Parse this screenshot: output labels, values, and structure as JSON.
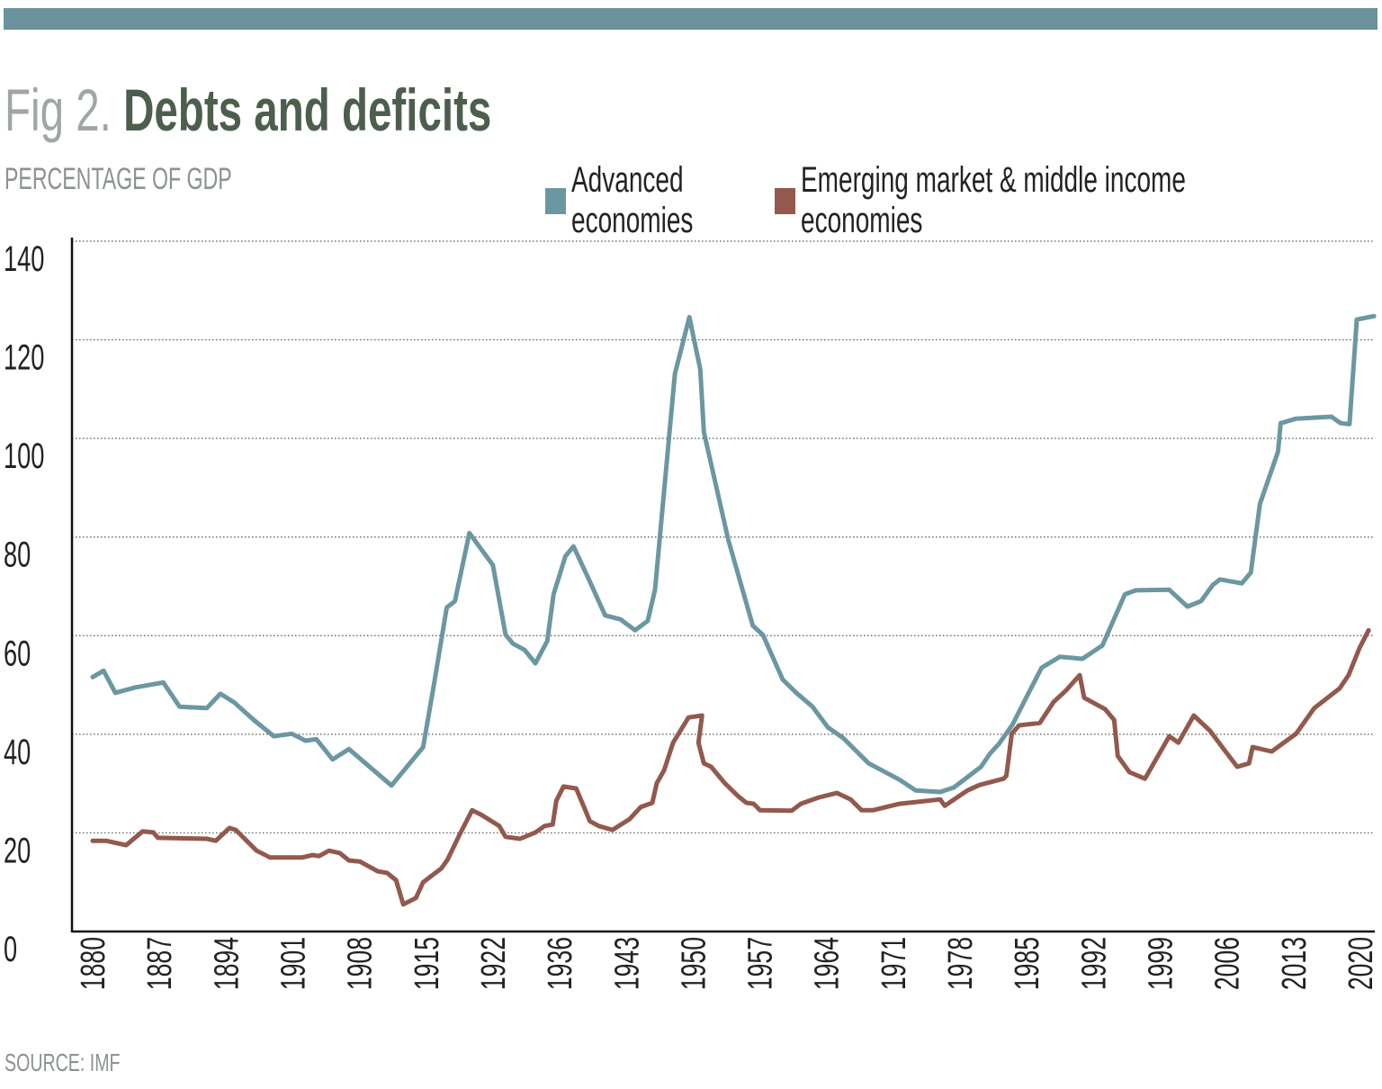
{
  "header": {
    "fig_label": "Fig 2.",
    "title": "Debts and deficits",
    "subtitle": "PERCENTAGE OF GDP",
    "source": "SOURCE: IMF",
    "bar_color": "#6a939c"
  },
  "chart_data": {
    "type": "line",
    "title": "Debts and deficits",
    "ylabel": "PERCENTAGE OF GDP",
    "xlabel": "",
    "ylim": [
      0,
      140
    ],
    "xlim": [
      1880,
      2021
    ],
    "yticks": [
      "0",
      "20",
      "40",
      "60",
      "80",
      "100",
      "120",
      "140"
    ],
    "xticks": [
      "1880",
      "1887",
      "1894",
      "1901",
      "1908",
      "1915",
      "1922",
      "1936",
      "1943",
      "1950",
      "1957",
      "1964",
      "1971",
      "1978",
      "1985",
      "1992",
      "1999",
      "2006",
      "2013",
      "2020"
    ],
    "grid": "horizontal dotted",
    "legend_position": "top-right",
    "series": [
      {
        "name": "Advanced economies",
        "color": "#6b97a2",
        "x": [
          1880,
          1881.2,
          1882.5,
          1884.7,
          1887.8,
          1889.6,
          1892.6,
          1894.1,
          1895.6,
          1897.8,
          1900,
          1902,
          1903.5,
          1904.7,
          1906.5,
          1908.3,
          1913,
          1916.5,
          1917.7,
          1919.1,
          1920,
          1921.6,
          1924.2,
          1925.6,
          1926.4,
          1927.7,
          1928.9,
          1930.2,
          1930.9,
          1932.2,
          1933.1,
          1934.8,
          1936.6,
          1938.3,
          1939.9,
          1941.3,
          1942.1,
          1944.3,
          1945.9,
          1947.1,
          1947.5,
          1950.2,
          1952.9,
          1954,
          1956.2,
          1957.7,
          1959.5,
          1961.2,
          1962.9,
          1965.7,
          1969.1,
          1970.9,
          1973.6,
          1975.1,
          1978.1,
          1979.1,
          1980.1,
          1981.6,
          1983,
          1984.8,
          1986.8,
          1989.3,
          1991.5,
          1994,
          1995.2,
          1998.9,
          2000.9,
          2002.4,
          2003.7,
          2004.5,
          2006.9,
          2007.9,
          2008.9,
          2010.9,
          2011.2,
          2012.9,
          2016.8,
          2017.8,
          2018.8,
          2019.6,
          2021.5
        ],
        "values": [
          51.6,
          52.9,
          48.4,
          49.5,
          50.5,
          45.6,
          45.3,
          48.2,
          46.5,
          42.9,
          39.6,
          40.1,
          38.7,
          39,
          34.9,
          37,
          29.6,
          37.4,
          50.2,
          65.7,
          67,
          80.8,
          74.3,
          60.2,
          58.4,
          57.1,
          54.4,
          58.9,
          68.4,
          76.1,
          78.1,
          71.4,
          64.1,
          63.3,
          61.1,
          63,
          69.3,
          113.1,
          124.6,
          114,
          101.3,
          79.4,
          62,
          60.2,
          51.1,
          48.4,
          45.6,
          41.4,
          39.2,
          34.1,
          30.8,
          28.6,
          28.3,
          29.2,
          33.4,
          36.1,
          38.1,
          42,
          47.1,
          53.5,
          55.7,
          55.3,
          58,
          68.4,
          69.2,
          69.3,
          65.9,
          67,
          70.3,
          71.4,
          70.6,
          72.8,
          86.7,
          97.3,
          103.1,
          104,
          104.4,
          103.1,
          102.9,
          124.1,
          124.8
        ]
      },
      {
        "name": "Emerging market & middle income economies",
        "color": "#92594c",
        "x": [
          1880,
          1881.5,
          1883.7,
          1885.5,
          1886.7,
          1887.2,
          1892.6,
          1893.6,
          1895.1,
          1895.8,
          1898.1,
          1899.6,
          1903.1,
          1904.3,
          1905,
          1906.1,
          1907.3,
          1908.3,
          1909.5,
          1911.5,
          1912.5,
          1913.5,
          1914.3,
          1915.7,
          1916.5,
          1918.5,
          1919.2,
          1920.4,
          1921.9,
          1922.9,
          1924.9,
          1925.6,
          1927.2,
          1928.9,
          1929.9,
          1930.8,
          1931.2,
          1932,
          1933.4,
          1934.2,
          1934.9,
          1935.9,
          1937.4,
          1939.3,
          1940.5,
          1941.8,
          1942.3,
          1943.1,
          1944.1,
          1945.8,
          1947.3,
          1946.9,
          1947.5,
          1948.3,
          1949.8,
          1951.3,
          1952.2,
          1953,
          1953.7,
          1957.2,
          1958.2,
          1960.2,
          1962.2,
          1963.7,
          1964.9,
          1966.2,
          1969.1,
          1973.6,
          1974.1,
          1976.6,
          1977.9,
          1980.6,
          1980.9,
          1981.5,
          1982.3,
          1984.6,
          1986.1,
          1987.5,
          1989,
          1989.5,
          1991.8,
          1992.8,
          1993.2,
          1994.5,
          1996.2,
          1998.9,
          1999.9,
          2001.6,
          2003.4,
          2004.9,
          2006.4,
          2007.7,
          2008.1,
          2010.2,
          2012.9,
          2014.9,
          2017.7,
          2018.7,
          2019.9,
          2020.9
        ],
        "values": [
          18.4,
          18.4,
          17.5,
          20.3,
          20.1,
          19,
          18.8,
          18.4,
          21,
          20.6,
          16.4,
          15,
          15,
          15.5,
          15.3,
          16.4,
          15.9,
          14.4,
          14.2,
          12.2,
          11.9,
          10.4,
          5.5,
          6.8,
          10,
          12.8,
          14.6,
          19.2,
          24.6,
          23.7,
          21.4,
          19.2,
          18.8,
          20.1,
          21.4,
          21.7,
          26.5,
          29.4,
          29,
          25.5,
          22.4,
          21.4,
          20.6,
          22.8,
          25.2,
          26.1,
          30.1,
          32.7,
          38.3,
          43.4,
          43.8,
          38.3,
          34.1,
          33.4,
          30.1,
          27.4,
          26.1,
          25.9,
          24.6,
          24.5,
          25.9,
          27.2,
          28.1,
          26.8,
          24.6,
          24.6,
          25.9,
          26.8,
          25.5,
          28.6,
          29.7,
          31,
          31.6,
          40.1,
          41.8,
          42.3,
          46.5,
          48.9,
          52,
          47.4,
          45.1,
          42.9,
          35.6,
          32.3,
          31,
          39.6,
          38.3,
          43.8,
          40.7,
          37,
          33.4,
          34.1,
          37.4,
          36.5,
          40.1,
          45.3,
          49.3,
          52,
          57.5,
          61.1
        ]
      }
    ]
  }
}
